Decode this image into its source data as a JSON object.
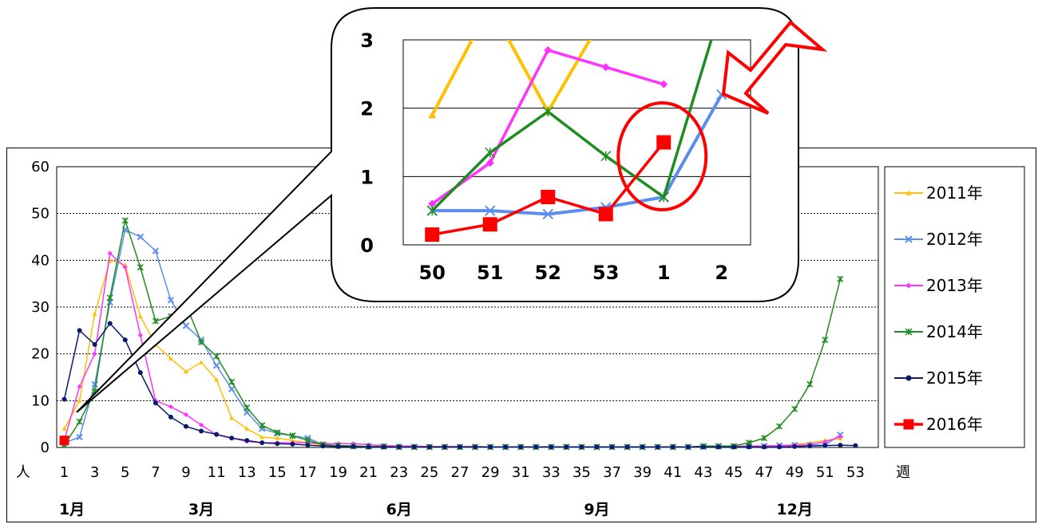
{
  "colors": {
    "2011年": "#FFC000",
    "2012年": "#5B8DEF",
    "2013年": "#FF33FF",
    "2014年": "#1E8C1E",
    "2015年": "#0A1A6E",
    "2016年": "#FF0000",
    "highlight": "#FF0000"
  },
  "chart_data": [
    {
      "type": "line",
      "ylim": [
        0,
        60
      ],
      "yticks": [
        "0",
        "10",
        "20",
        "30",
        "40",
        "50",
        "60"
      ],
      "xticks": [
        "1",
        "3",
        "5",
        "7",
        "9",
        "11",
        "13",
        "15",
        "17",
        "19",
        "21",
        "23",
        "25",
        "27",
        "29",
        "31",
        "33",
        "35",
        "37",
        "39",
        "41",
        "43",
        "45",
        "47",
        "49",
        "51",
        "53"
      ],
      "xlabel": "週",
      "ylabel": "人",
      "month_labels": [
        {
          "text": "1月",
          "week": 1.5
        },
        {
          "text": "3月",
          "week": 10
        },
        {
          "text": "6月",
          "week": 23
        },
        {
          "text": "9月",
          "week": 36
        },
        {
          "text": "12月",
          "week": 49
        }
      ],
      "grid": "horizontal",
      "legend_position": "right",
      "series": [
        {
          "name": "2011年",
          "x": [
            1,
            2,
            3,
            4,
            5,
            6,
            7,
            8,
            9,
            10,
            11,
            12,
            13,
            14,
            15,
            16,
            17,
            18,
            19,
            20,
            21,
            22,
            23,
            24,
            25,
            26,
            27,
            28,
            29,
            30,
            31,
            32,
            33,
            34,
            35,
            36,
            37,
            38,
            39,
            40,
            41,
            42,
            43,
            44,
            45,
            46,
            47,
            48,
            49,
            50,
            51,
            52
          ],
          "values": [
            4,
            10,
            28.5,
            40,
            39,
            28,
            22,
            19,
            16.2,
            18.2,
            14.5,
            6.3,
            4,
            2.2,
            2,
            1.5,
            1,
            0.5,
            0.4,
            0.3,
            0.2,
            0.2,
            0.1,
            0.1,
            0.1,
            0.1,
            0.1,
            0.1,
            0.1,
            0.1,
            0.1,
            0.1,
            0.1,
            0.1,
            0.1,
            0.1,
            0.1,
            0.1,
            0.1,
            0.1,
            0.1,
            0.1,
            0.1,
            0.2,
            0.2,
            0.3,
            0.3,
            0.4,
            0.6,
            1,
            1.5,
            1.9
          ]
        },
        {
          "name": "2012年",
          "x": [
            1,
            2,
            3,
            4,
            5,
            6,
            7,
            8,
            9,
            10,
            11,
            12,
            13,
            14,
            15,
            16,
            17,
            18,
            19,
            20,
            21,
            22,
            23,
            24,
            25,
            26,
            27,
            28,
            29,
            30,
            31,
            32,
            33,
            34,
            35,
            36,
            37,
            38,
            39,
            40,
            41,
            42,
            43,
            44,
            45,
            46,
            47,
            48,
            49,
            50,
            51,
            52
          ],
          "values": [
            1,
            2.2,
            13.5,
            31,
            46.5,
            45,
            42,
            31.5,
            26,
            23,
            17.5,
            12.5,
            7.5,
            4,
            3,
            2.5,
            2,
            0.6,
            0.4,
            0.3,
            0.2,
            0.2,
            0.1,
            0.1,
            0.1,
            0.1,
            0.1,
            0.1,
            0.1,
            0.1,
            0.1,
            0.1,
            0.1,
            0.1,
            0.1,
            0.1,
            0.1,
            0.1,
            0.1,
            0.1,
            0.1,
            0.1,
            0.1,
            0.2,
            0.2,
            0.3,
            0.3,
            0.4,
            0.5,
            0.5,
            0.5,
            2.7
          ]
        },
        {
          "name": "2013年",
          "x": [
            1,
            2,
            3,
            4,
            5,
            6,
            7,
            8,
            9,
            10,
            11,
            12,
            13,
            14,
            15,
            16,
            17,
            18,
            19,
            20,
            21,
            22,
            23,
            24,
            25,
            26,
            27,
            28,
            29,
            30,
            31,
            32,
            33,
            34,
            35,
            36,
            37,
            38,
            39,
            40,
            41,
            42,
            43,
            44,
            45,
            46,
            47,
            48,
            49,
            50,
            51,
            52
          ],
          "values": [
            1.5,
            13,
            20,
            41.5,
            38.5,
            24,
            10,
            8.7,
            7,
            4.8,
            2.7,
            2,
            1.3,
            1,
            1,
            1,
            1,
            0.8,
            0.8,
            0.8,
            0.6,
            0.4,
            0.3,
            0.3,
            0.2,
            0.2,
            0.2,
            0.2,
            0.1,
            0.1,
            0.1,
            0.1,
            0.1,
            0.1,
            0.1,
            0.1,
            0.1,
            0.1,
            0.1,
            0.1,
            0.1,
            0.1,
            0.1,
            0.2,
            0.2,
            0.3,
            0.3,
            0.4,
            0.5,
            0.6,
            1.2,
            2.3
          ]
        },
        {
          "name": "2014年",
          "x": [
            1,
            2,
            3,
            4,
            5,
            6,
            7,
            8,
            9,
            10,
            11,
            12,
            13,
            14,
            15,
            16,
            17,
            18,
            19,
            20,
            21,
            22,
            23,
            24,
            25,
            26,
            27,
            28,
            29,
            30,
            31,
            32,
            33,
            34,
            35,
            36,
            37,
            38,
            39,
            40,
            41,
            42,
            43,
            44,
            45,
            46,
            47,
            48,
            49,
            50,
            51,
            52
          ],
          "values": [
            0.5,
            5.5,
            12,
            32,
            48.5,
            38.5,
            27,
            28,
            30.5,
            22.5,
            19.5,
            14,
            8.5,
            4.7,
            3.2,
            2.5,
            1.5,
            0.6,
            0.4,
            0.3,
            0.2,
            0.2,
            0.1,
            0.1,
            0.1,
            0.1,
            0.1,
            0.1,
            0.1,
            0.1,
            0.1,
            0.1,
            0.1,
            0.1,
            0.1,
            0.1,
            0.1,
            0.1,
            0.1,
            0.1,
            0.1,
            0.1,
            0.3,
            0.3,
            0.3,
            1,
            2,
            4.5,
            8.2,
            13.5,
            23,
            36
          ]
        },
        {
          "name": "2015年",
          "x": [
            1,
            2,
            3,
            4,
            5,
            6,
            7,
            8,
            9,
            10,
            11,
            12,
            13,
            14,
            15,
            16,
            17,
            18,
            19,
            20,
            21,
            22,
            23,
            24,
            25,
            26,
            27,
            28,
            29,
            30,
            31,
            32,
            33,
            34,
            35,
            36,
            37,
            38,
            39,
            40,
            41,
            42,
            43,
            44,
            45,
            46,
            47,
            48,
            49,
            50,
            51,
            52,
            53
          ],
          "values": [
            10.3,
            25,
            22,
            26.5,
            23,
            16,
            9.5,
            6.5,
            4.5,
            3.5,
            2.8,
            2,
            1.5,
            1,
            0.8,
            0.7,
            0.5,
            0.3,
            0.2,
            0.2,
            0.1,
            0.1,
            0.1,
            0.1,
            0.1,
            0.1,
            0.1,
            0.1,
            0.1,
            0.1,
            0.1,
            0.1,
            0.1,
            0.1,
            0.1,
            0.1,
            0.1,
            0.1,
            0.1,
            0.1,
            0.1,
            0.1,
            0.1,
            0.1,
            0.1,
            0.1,
            0.1,
            0.1,
            0.2,
            0.3,
            0.4,
            0.5,
            0.4
          ]
        },
        {
          "name": "2016年",
          "x": [
            1
          ],
          "values": [
            1.5
          ]
        }
      ]
    },
    {
      "type": "line",
      "ylim": [
        0,
        3
      ],
      "yticks": [
        "0",
        "1",
        "2",
        "3"
      ],
      "xticks": [
        "50",
        "51",
        "52",
        "53",
        "1",
        "2"
      ],
      "grid": "horizontal",
      "series": [
        {
          "name": "2011年",
          "values": [
            1.9,
            3.5,
            1.95,
            3.4,
            null,
            null
          ]
        },
        {
          "name": "2012年",
          "values": [
            0.5,
            0.5,
            0.45,
            0.55,
            0.7,
            2.2
          ]
        },
        {
          "name": "2013年",
          "values": [
            0.6,
            1.2,
            2.85,
            2.6,
            2.35,
            null
          ]
        },
        {
          "name": "2014年",
          "values": [
            0.5,
            1.35,
            1.95,
            1.3,
            0.7,
            3.5
          ]
        },
        {
          "name": "2016年",
          "values": [
            0.15,
            0.3,
            0.7,
            0.45,
            1.5,
            null
          ]
        }
      ]
    }
  ]
}
